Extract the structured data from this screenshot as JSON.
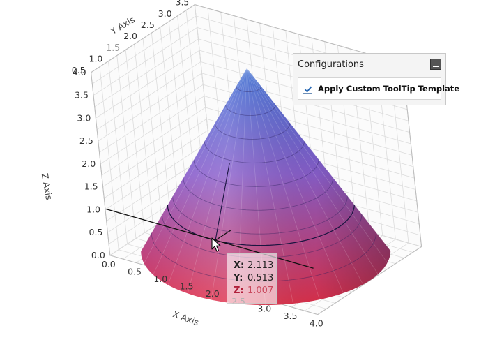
{
  "config_panel": {
    "title": "Configurations",
    "checkbox_label": "Apply Custom ToolTip Template",
    "checkbox_checked": true
  },
  "tooltip": {
    "x_label": "X:",
    "x_value": "2.113",
    "y_label": "Y:",
    "y_value": "0.513",
    "z_label": "Z:",
    "z_value": "1.007"
  },
  "colors": {
    "cone_top": "#3c6fd8",
    "cone_mid": "#8a5fcc",
    "cone_bottom": "#e0304a",
    "grid": "#dcdcdc",
    "check": "#2a6ab5"
  },
  "chart_data": {
    "type": "surface3d",
    "shape": "cone",
    "apex": [
      2.0,
      2.0,
      4.0
    ],
    "base_radius": 2.0,
    "base_z": 0.0,
    "grid": true,
    "x_axis": {
      "label": "X Axis",
      "range": [
        0.0,
        4.0
      ],
      "ticks": [
        "0.0",
        "0.5",
        "1.0",
        "1.5",
        "2.0",
        "2.5",
        "3.0",
        "3.5",
        "4.0"
      ]
    },
    "y_axis": {
      "label": "Y Axis",
      "range": [
        0.5,
        3.5
      ],
      "ticks": [
        "0.5",
        "1.0",
        "1.5",
        "2.0",
        "2.5",
        "3.0",
        "3.5"
      ]
    },
    "z_axis": {
      "label": "Z Axis",
      "range": [
        0.0,
        4.0
      ],
      "ticks": [
        "0.0",
        "0.5",
        "1.0",
        "1.5",
        "2.0",
        "2.5",
        "3.0",
        "3.5",
        "4.0"
      ]
    },
    "hover_point": {
      "x": 2.113,
      "y": 0.513,
      "z": 1.007
    }
  }
}
